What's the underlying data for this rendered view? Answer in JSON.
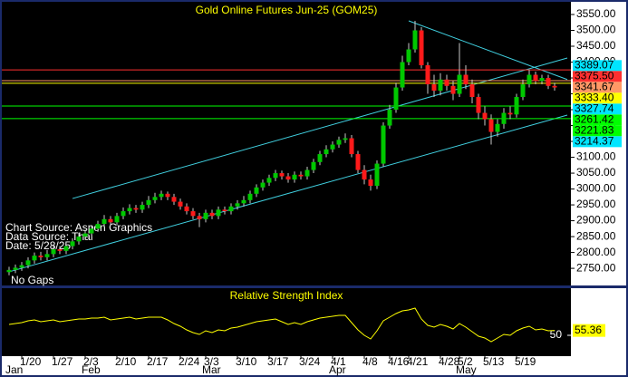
{
  "chart_data": {
    "type": "candlestick",
    "title": "Gold Online Futures Jun-25 (GOM25)",
    "annotations": [
      "Chart Source: Aspen Graphics",
      "Data Source: Thai",
      "Date: 5/28/25",
      "No Gaps"
    ],
    "categories": [
      null,
      null,
      "1/20",
      null,
      null,
      null,
      null,
      "1/27",
      null,
      null,
      null,
      null,
      "2/3",
      null,
      null,
      null,
      null,
      "2/10",
      null,
      null,
      null,
      null,
      "2/17",
      null,
      null,
      null,
      null,
      "2/24",
      null,
      null,
      null,
      "3/3",
      null,
      null,
      null,
      null,
      "3/10",
      null,
      null,
      null,
      null,
      "3/17",
      null,
      null,
      null,
      null,
      "3/24",
      null,
      null,
      null,
      null,
      "4/1",
      null,
      null,
      null,
      null,
      "4/8",
      null,
      null,
      null,
      "4/16",
      null,
      null,
      "4/21",
      null,
      null,
      null,
      null,
      "4/28",
      null,
      null,
      "5/2",
      null,
      null,
      null,
      "5/13",
      null,
      null,
      null,
      null,
      "5/19",
      null,
      null,
      null,
      null,
      null,
      null
    ],
    "months": [
      "Jan",
      null,
      null,
      null,
      null,
      null,
      null,
      null,
      null,
      null,
      null,
      null,
      "Feb",
      null,
      null,
      null,
      null,
      null,
      null,
      null,
      null,
      null,
      null,
      null,
      null,
      null,
      null,
      null,
      null,
      null,
      null,
      "Mar",
      null,
      null,
      null,
      null,
      null,
      null,
      null,
      null,
      null,
      null,
      null,
      null,
      null,
      null,
      null,
      null,
      null,
      null,
      null,
      "Apr",
      null,
      null,
      null,
      null,
      null,
      null,
      null,
      null,
      null,
      null,
      null,
      null,
      null,
      null,
      null,
      null,
      null,
      null,
      null,
      "May",
      null,
      null,
      null,
      null,
      null,
      null,
      null,
      null,
      null,
      null,
      null,
      null,
      null,
      null,
      null
    ],
    "open": [
      2738,
      2745,
      2752,
      2760,
      2775,
      2790,
      2785,
      2795,
      2810,
      2805,
      2820,
      2835,
      2850,
      2860,
      2875,
      2890,
      2905,
      2895,
      2915,
      2930,
      2940,
      2935,
      2950,
      2965,
      2975,
      2985,
      2975,
      2960,
      2945,
      2930,
      2915,
      2905,
      2925,
      2915,
      2935,
      2930,
      2945,
      2955,
      2965,
      2985,
      3005,
      3020,
      3035,
      3050,
      3040,
      3030,
      3045,
      3040,
      3060,
      3085,
      3110,
      3125,
      3140,
      3155,
      3160,
      3110,
      3060,
      3030,
      3010,
      3080,
      3200,
      3250,
      3320,
      3400,
      3440,
      3500,
      3390,
      3330,
      3310,
      3345,
      3325,
      3300,
      3360,
      3330,
      3290,
      3240,
      3220,
      3180,
      3205,
      3240,
      3235,
      3290,
      3330,
      3360,
      3340,
      3350,
      3325
    ],
    "high": [
      2755,
      2762,
      2770,
      2785,
      2800,
      2802,
      2808,
      2822,
      2820,
      2832,
      2845,
      2862,
      2872,
      2885,
      2900,
      2918,
      2915,
      2925,
      2942,
      2952,
      2950,
      2960,
      2978,
      2988,
      2995,
      2992,
      2985,
      2970,
      2955,
      2940,
      2925,
      2935,
      2935,
      2945,
      2945,
      2955,
      2965,
      2978,
      2995,
      3015,
      3030,
      3045,
      3060,
      3058,
      3050,
      3055,
      3055,
      3070,
      3095,
      3120,
      3138,
      3150,
      3165,
      3175,
      3170,
      3120,
      3075,
      3045,
      3090,
      3210,
      3265,
      3335,
      3420,
      3460,
      3530,
      3510,
      3400,
      3360,
      3365,
      3360,
      3340,
      3460,
      3390,
      3345,
      3300,
      3260,
      3235,
      3220,
      3255,
      3260,
      3300,
      3345,
      3375,
      3370,
      3360,
      3360,
      3335
    ],
    "low": [
      2728,
      2735,
      2742,
      2750,
      2765,
      2775,
      2775,
      2785,
      2795,
      2795,
      2810,
      2825,
      2840,
      2850,
      2865,
      2880,
      2885,
      2885,
      2905,
      2920,
      2925,
      2925,
      2940,
      2955,
      2965,
      2965,
      2950,
      2935,
      2920,
      2905,
      2880,
      2895,
      2905,
      2905,
      2920,
      2920,
      2935,
      2945,
      2955,
      2975,
      2995,
      3010,
      3025,
      3030,
      3020,
      3020,
      3030,
      3030,
      3050,
      3075,
      3100,
      3115,
      3130,
      3145,
      3100,
      3050,
      3015,
      2995,
      3000,
      3070,
      3190,
      3240,
      3310,
      3390,
      3430,
      3380,
      3300,
      3290,
      3295,
      3310,
      3280,
      3290,
      3315,
      3270,
      3220,
      3200,
      3140,
      3165,
      3190,
      3220,
      3225,
      3280,
      3320,
      3330,
      3330,
      3315,
      3310
    ],
    "close": [
      2745,
      2752,
      2760,
      2775,
      2790,
      2785,
      2795,
      2810,
      2805,
      2820,
      2835,
      2850,
      2860,
      2875,
      2890,
      2905,
      2895,
      2915,
      2930,
      2940,
      2935,
      2950,
      2965,
      2975,
      2985,
      2975,
      2960,
      2945,
      2930,
      2915,
      2905,
      2925,
      2915,
      2935,
      2930,
      2945,
      2955,
      2965,
      2985,
      3005,
      3020,
      3035,
      3050,
      3040,
      3030,
      3045,
      3040,
      3060,
      3085,
      3110,
      3125,
      3140,
      3155,
      3160,
      3110,
      3060,
      3030,
      3010,
      3080,
      3200,
      3250,
      3320,
      3400,
      3440,
      3500,
      3390,
      3330,
      3310,
      3345,
      3325,
      3300,
      3360,
      3330,
      3290,
      3240,
      3220,
      3180,
      3205,
      3240,
      3235,
      3290,
      3330,
      3360,
      3340,
      3350,
      3325,
      3320
    ],
    "up_color": "#00c800",
    "down_color": "#ff1a1a",
    "ylim": [
      2696,
      3590
    ],
    "yticks": [
      {
        "value": 3550,
        "label": "3550.00"
      },
      {
        "value": 3500,
        "label": "3500.00"
      },
      {
        "value": 3450,
        "label": "3450.00"
      },
      {
        "value": 3400,
        "label": "3400.00"
      },
      {
        "value": 3350,
        "label": "3350.00"
      },
      {
        "value": 3300,
        "label": "3300.00"
      },
      {
        "value": 3250,
        "label": "3250.00"
      },
      {
        "value": 3200,
        "label": "3200.00"
      },
      {
        "value": 3150,
        "label": "3150.00"
      },
      {
        "value": 3100,
        "label": "3100.00"
      },
      {
        "value": 3050,
        "label": "3050.00"
      },
      {
        "value": 3000,
        "label": "3000.00"
      },
      {
        "value": 2950,
        "label": "2950.00"
      },
      {
        "value": 2900,
        "label": "2900.00"
      },
      {
        "value": 2850,
        "label": "2850.00"
      },
      {
        "value": 2800,
        "label": "2800.00"
      },
      {
        "value": 2750,
        "label": "2750.00"
      }
    ],
    "levels": [
      {
        "value": 3389.07,
        "label": "3389.07",
        "color": "#00e5ff",
        "line": false
      },
      {
        "value": 3375.5,
        "label": "3375.50",
        "color": "#ff3030",
        "line": true
      },
      {
        "value": 3341.67,
        "label": "3341.67",
        "color": "#ff9966",
        "line": true
      },
      {
        "value": 3333.4,
        "label": "3333.40",
        "color": "#ffff00",
        "line": true
      },
      {
        "value": 3327.74,
        "label": "3327.74",
        "color": "#00e5ff",
        "line": false
      },
      {
        "value": 3261.42,
        "label": "3261.42",
        "color": "#00ff00",
        "line": true
      },
      {
        "value": 3221.83,
        "label": "3221.83",
        "color": "#00ff00",
        "line": true
      },
      {
        "value": 3214.37,
        "label": "3214.37",
        "color": "#00e5ff",
        "line": false
      }
    ],
    "trendlines": [
      {
        "x": [
          0,
          88
        ],
        "y": [
          2739,
          3233
        ],
        "color": "#40d0e0"
      },
      {
        "x": [
          10,
          88
        ],
        "y": [
          2970,
          3413
        ],
        "color": "#40d0e0"
      },
      {
        "x": [
          63,
          88
        ],
        "y": [
          3530,
          3345
        ],
        "color": "#40d0e0"
      }
    ],
    "rsi": {
      "title": "Relative Strength Index",
      "color": "#ffff00",
      "ylim": [
        30,
        85
      ],
      "yticks": [
        50
      ],
      "values": [
        62,
        63,
        64,
        66,
        67,
        65,
        66,
        67,
        65,
        66,
        67,
        68,
        68,
        69,
        69,
        70,
        67,
        68,
        69,
        70,
        68,
        69,
        70,
        70,
        70,
        67,
        63,
        60,
        56,
        53,
        51,
        55,
        53,
        56,
        55,
        58,
        59,
        61,
        63,
        65,
        66,
        67,
        68,
        65,
        62,
        64,
        62,
        65,
        67,
        69,
        70,
        71,
        72,
        72,
        64,
        56,
        50,
        46,
        55,
        66,
        70,
        74,
        77,
        78,
        80,
        68,
        61,
        59,
        62,
        60,
        57,
        63,
        59,
        54,
        49,
        47,
        43,
        47,
        51,
        50,
        55,
        58,
        60,
        56,
        57,
        55,
        55.36
      ]
    }
  }
}
